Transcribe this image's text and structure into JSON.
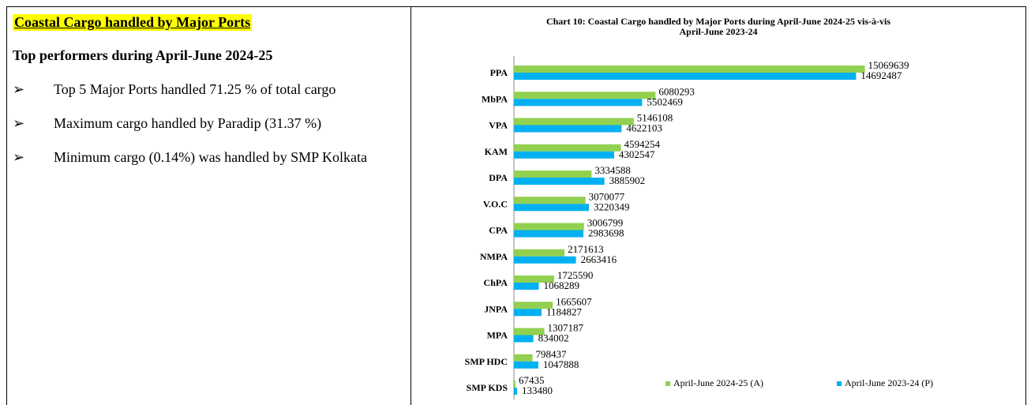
{
  "left": {
    "heading": "Coastal Cargo handled by Major Ports",
    "subheading": "Top performers during April-June 2024-25",
    "bullets": [
      "Top 5 Major Ports handled 71.25 % of total cargo",
      "Maximum cargo handled by Paradip (31.37 %)",
      "Minimum cargo (0.14%) was handled by SMP Kolkata"
    ]
  },
  "chart_data": {
    "type": "hbar",
    "title": "Chart 10: Coastal Cargo handled by Major Ports during April-June 2024-25 vis-à-vis April-June 2023-24",
    "categories": [
      "PPA",
      "MbPA",
      "VPA",
      "KAM",
      "DPA",
      "V.O.C",
      "CPA",
      "NMPA",
      "ChPA",
      "JNPA",
      "MPA",
      "SMP HDC",
      "SMP KDS"
    ],
    "series": [
      {
        "name": "April-June 2024-25 (A)",
        "color": "#92d050",
        "values": [
          15069639,
          6080293,
          5146108,
          4594254,
          3334588,
          3070077,
          3006799,
          2171613,
          1725590,
          1665607,
          1307187,
          798437,
          67435
        ]
      },
      {
        "name": "April-June 2023-24 (P)",
        "color": "#00b0f0",
        "values": [
          14692487,
          5502469,
          4622103,
          4302547,
          3885902,
          3220349,
          2983698,
          2663416,
          1068289,
          1184827,
          834002,
          1047888,
          133480
        ]
      }
    ],
    "xlim": [
      0,
      16000000
    ],
    "legend": "bottom-right"
  }
}
